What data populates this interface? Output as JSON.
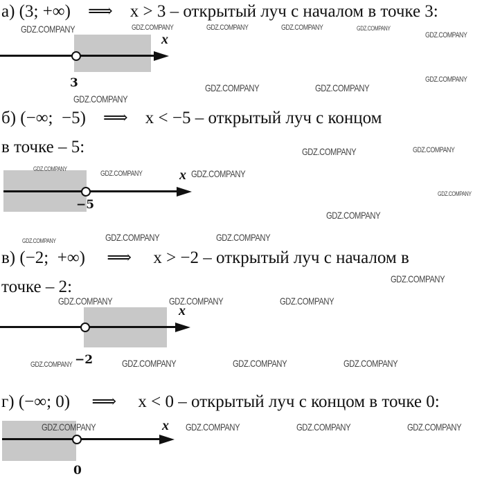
{
  "items": [
    {
      "lines": [
        "а) (3; +∞)    ⟹    x > 3 – открытый луч с началом в точке 3:"
      ],
      "axis_label": "x",
      "point_label": "3",
      "point": 3,
      "direction": "right"
    },
    {
      "lines": [
        "б) (−∞;  −5)    ⟹    x < −5 – открытый луч с концом",
        "в точке – 5:"
      ],
      "axis_label": "x",
      "point_label": "−5",
      "point": -5,
      "direction": "left"
    },
    {
      "lines": [
        "в) (−2;  +∞)     ⟹     x > −2 – открытый луч с началом в",
        "точке – 2:"
      ],
      "axis_label": "x",
      "point_label": "−2",
      "point": -2,
      "direction": "right"
    },
    {
      "lines": [
        "г) (−∞; 0)     ⟹     x < 0 – открытый луч с концом в точке 0:"
      ],
      "axis_label": "x",
      "point_label": "0",
      "point": 0,
      "direction": "left"
    }
  ],
  "watermark": "GDZ.COMPANY",
  "colors": {
    "shade": "#c8c8c8",
    "text": "#111111"
  }
}
